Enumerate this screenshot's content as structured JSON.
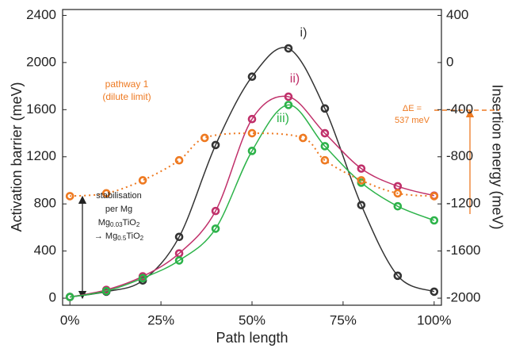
{
  "chart_data": {
    "type": "line",
    "x": [
      0,
      10,
      20,
      30,
      40,
      50,
      60,
      70,
      80,
      90,
      100
    ],
    "xlabel": "Path length",
    "ylabel": "Activation barrier (meV)",
    "y2label": "Insertion energy (meV)",
    "xlim": [
      -2,
      102
    ],
    "ylim": [
      -60,
      2450
    ],
    "y2lim": [
      -2060,
      450
    ],
    "xticks": [
      {
        "value": 0,
        "label": "0%"
      },
      {
        "value": 25,
        "label": "25%"
      },
      {
        "value": 50,
        "label": "50%"
      },
      {
        "value": 75,
        "label": "75%"
      },
      {
        "value": 100,
        "label": "100%"
      }
    ],
    "yticks": [
      0,
      400,
      800,
      1200,
      1600,
      2000,
      2400
    ],
    "y2ticks": [
      -2000,
      -1600,
      -1200,
      -800,
      -400,
      0,
      400
    ],
    "series": [
      {
        "name": "i)",
        "color": "#333333",
        "values": [
          10,
          55,
          150,
          520,
          1300,
          1880,
          2120,
          1610,
          790,
          190,
          55
        ]
      },
      {
        "name": "ii)",
        "color": "#c0306a",
        "values": [
          10,
          70,
          185,
          380,
          740,
          1520,
          1710,
          1400,
          1100,
          950,
          870
        ]
      },
      {
        "name": "iii)",
        "color": "#2db34a",
        "values": [
          10,
          60,
          170,
          320,
          590,
          1250,
          1640,
          1290,
          980,
          780,
          660
        ]
      },
      {
        "name": "pathway 1",
        "note": "(dilute limit)",
        "color": "#ee7a22",
        "axis": "y2",
        "dashed": true,
        "x": [
          0,
          10,
          20,
          30,
          37,
          50,
          64,
          70,
          80,
          90,
          100
        ],
        "values": [
          -1134,
          -1110,
          -1000,
          -830,
          -640,
          -600,
          -640,
          -830,
          -1000,
          -1110,
          -1134
        ]
      }
    ],
    "annotations": {
      "delta_e": [
        "ΔE =",
        "537 meV"
      ],
      "stabilisation": [
        [
          "stabilisation"
        ],
        [
          "per Mg"
        ],
        [
          "Mg",
          "0.03",
          "TiO",
          "2"
        ],
        [
          "→ Mg",
          "0.5",
          "TiO",
          "2"
        ]
      ]
    }
  }
}
